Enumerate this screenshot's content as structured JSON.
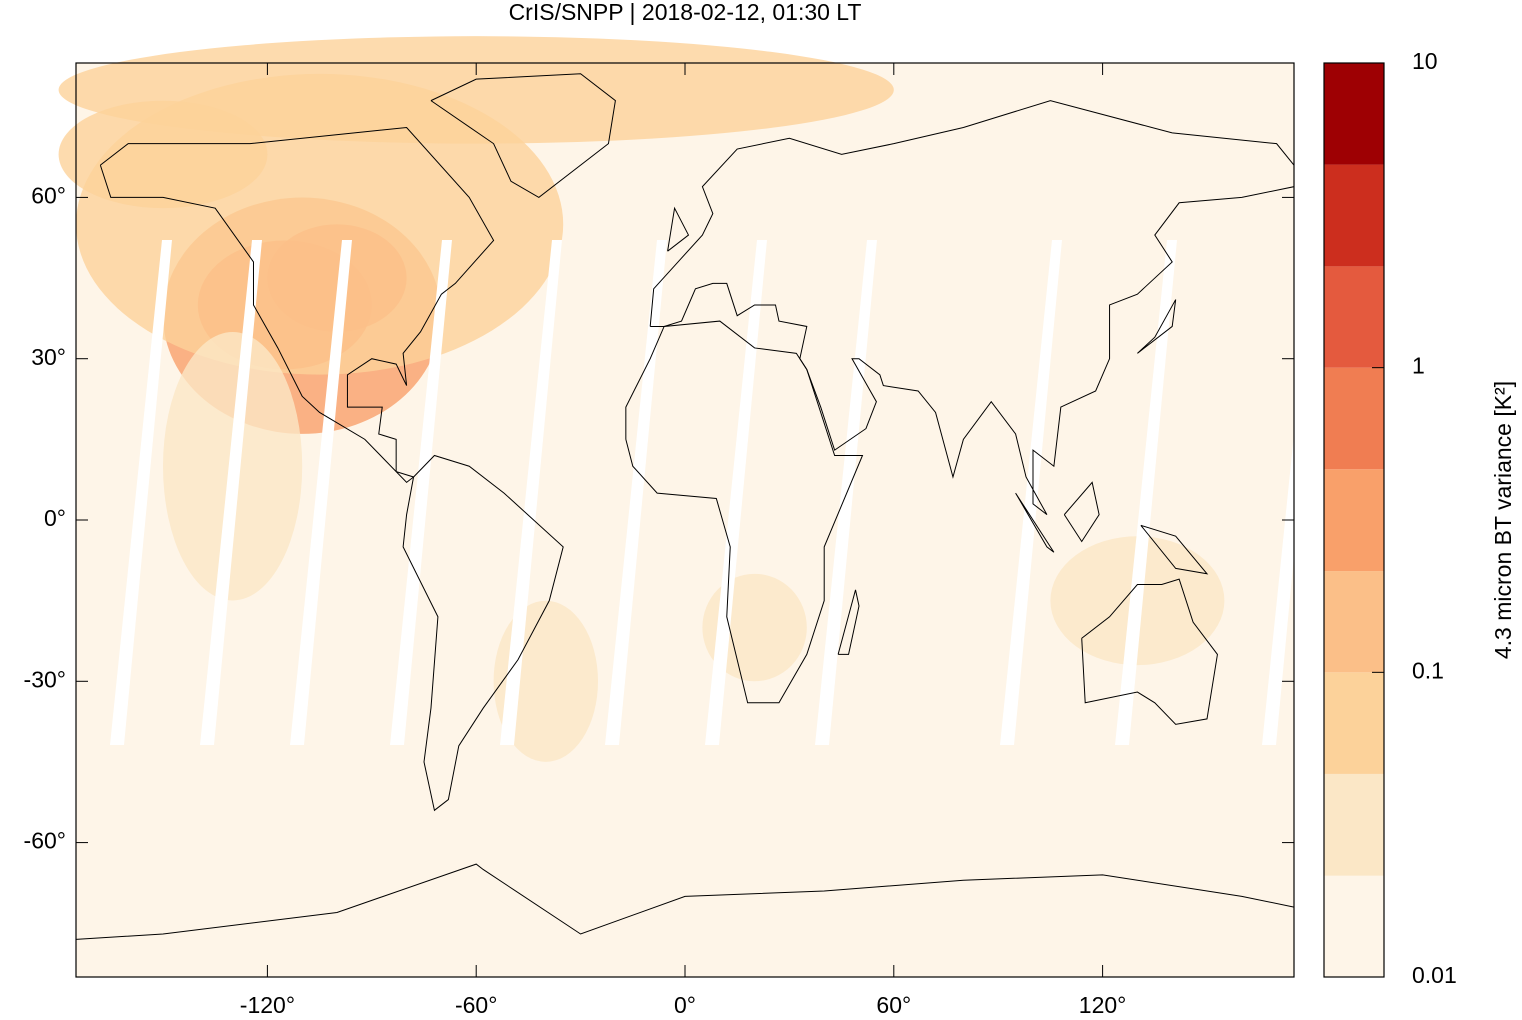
{
  "chart_data": {
    "type": "map",
    "title": "CrIS/SNPP | 2018-02-12, 01:30 LT",
    "xlim": [
      -175,
      175
    ],
    "ylim": [
      -85,
      85
    ],
    "xticks": [
      {
        "value": -120,
        "label": "-120°"
      },
      {
        "value": -60,
        "label": "-60°"
      },
      {
        "value": 0,
        "label": "0°"
      },
      {
        "value": 60,
        "label": "60°"
      },
      {
        "value": 120,
        "label": "120°"
      }
    ],
    "yticks": [
      {
        "value": -60,
        "label": "-60°"
      },
      {
        "value": -30,
        "label": "-30°"
      },
      {
        "value": 0,
        "label": "0°"
      },
      {
        "value": 30,
        "label": "30°"
      },
      {
        "value": 60,
        "label": "60°"
      }
    ],
    "colorbar": {
      "label": "4.3 micron BT variance [K²]",
      "log": true,
      "lim": [
        0.01,
        10
      ],
      "ticks": [
        0.01,
        0.1,
        1,
        10
      ],
      "levels": [
        0.01,
        0.0215,
        0.0464,
        0.1,
        0.215,
        0.464,
        1,
        2.15,
        4.64,
        10
      ],
      "colors": [
        "#fef5e8",
        "#fbe7c6",
        "#fcd29a",
        "#fbbf88",
        "#f9a06a",
        "#f07d52",
        "#e45a3e",
        "#cc2e1e",
        "#9e0003"
      ]
    }
  }
}
